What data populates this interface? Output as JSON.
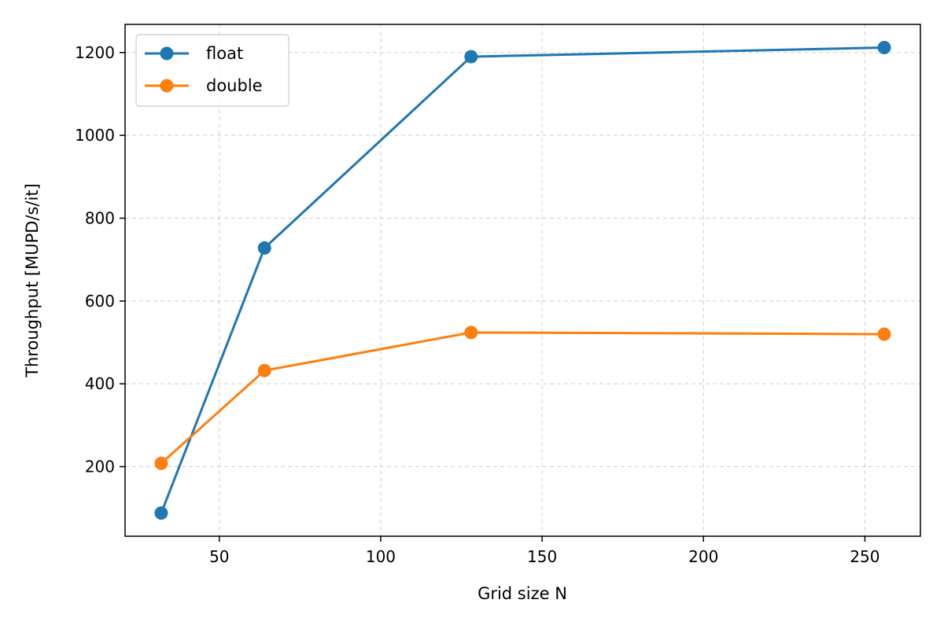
{
  "chart_data": {
    "type": "line",
    "title": "",
    "xlabel": "Grid size N",
    "ylabel": "Throughput [MUPD/s/it]",
    "x": [
      32,
      64,
      128,
      256
    ],
    "series": [
      {
        "name": "float",
        "color": "#1f77b4",
        "values": [
          88,
          728,
          1190,
          1212
        ]
      },
      {
        "name": "double",
        "color": "#ff7f0e",
        "values": [
          208,
          432,
          524,
          520
        ]
      }
    ],
    "xlim": [
      20.8,
      267.2
    ],
    "ylim": [
      32,
      1268
    ],
    "xticks": [
      50,
      100,
      150,
      200,
      250
    ],
    "yticks": [
      200,
      400,
      600,
      800,
      1000,
      1200
    ],
    "grid": true,
    "legend_position": "top-left"
  }
}
